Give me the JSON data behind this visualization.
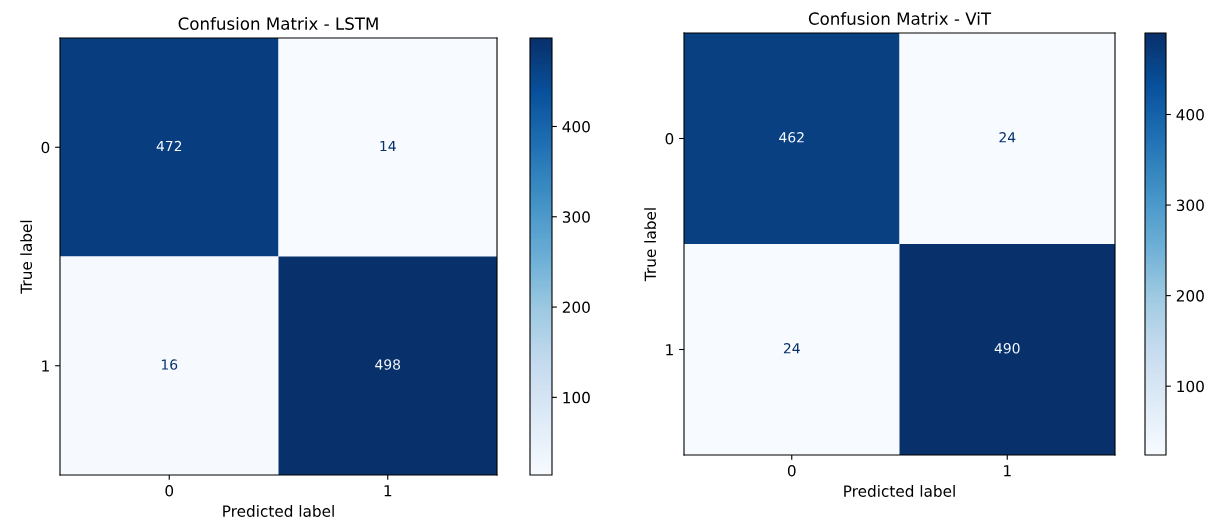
{
  "chart_data": [
    {
      "type": "heatmap",
      "title": "Confusion Matrix - LSTM",
      "xlabel": "Predicted label",
      "ylabel": "True label",
      "categories": [
        "0",
        "1"
      ],
      "y_categories": [
        "0",
        "1"
      ],
      "cells": [
        [
          472,
          14
        ],
        [
          16,
          498
        ]
      ],
      "clim": [
        14,
        498
      ],
      "cticks": [
        100,
        200,
        300,
        400
      ],
      "data_labels": true
    },
    {
      "type": "heatmap",
      "title": "Confusion Matrix - ViT",
      "xlabel": "Predicted label",
      "ylabel": "True label",
      "categories": [
        "0",
        "1"
      ],
      "y_categories": [
        "0",
        "1"
      ],
      "cells": [
        [
          462,
          24
        ],
        [
          24,
          490
        ]
      ],
      "clim": [
        24,
        490
      ],
      "cticks": [
        100,
        200,
        300,
        400
      ],
      "data_labels": true
    }
  ]
}
